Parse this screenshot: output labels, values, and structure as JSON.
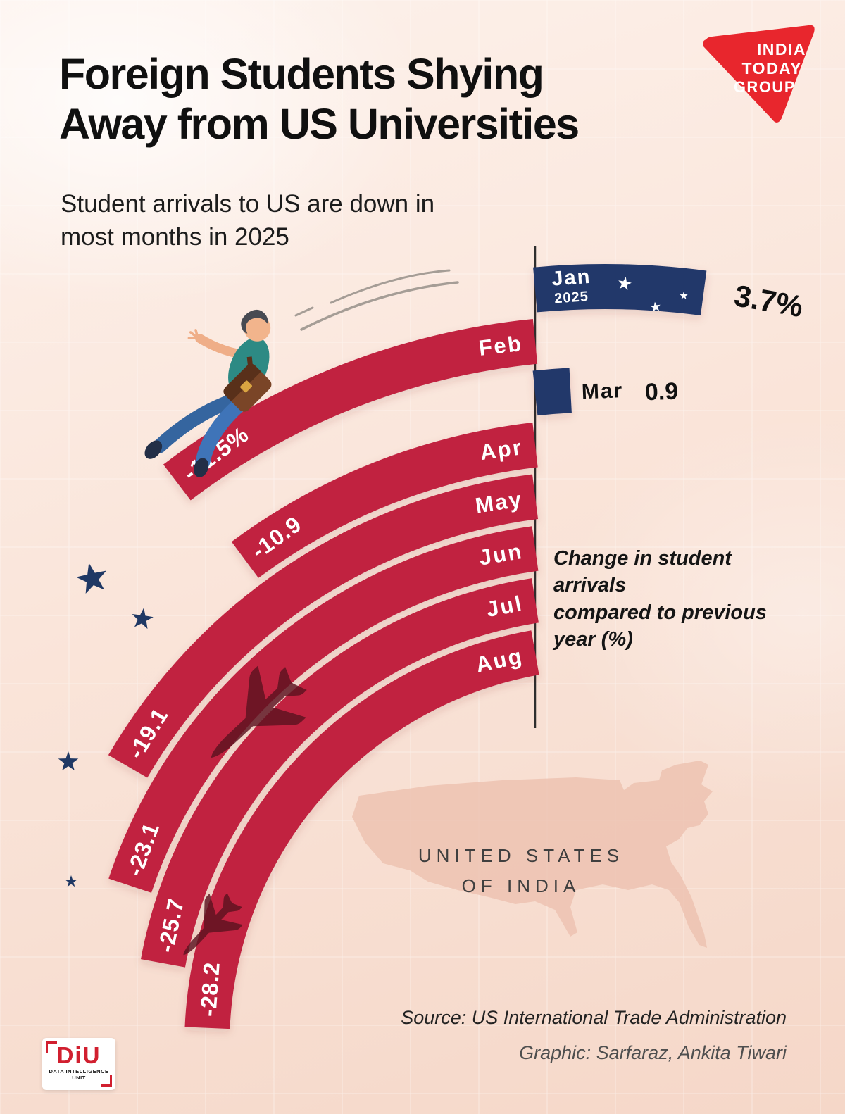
{
  "header": {
    "title": "Foreign Students Shying\nAway from US Universities",
    "subtitle": "Student arrivals to US are down in\nmost months in 2025"
  },
  "brand": {
    "line1": "INDIA",
    "line2": "TODAY",
    "line3": "GROUP"
  },
  "map": {
    "label": "UNITED STATES\nOF INDIA"
  },
  "footer": {
    "source": "Source: US International Trade Administration",
    "credit": "Graphic: Sarfaraz, Ankita Tiwari"
  },
  "diu": {
    "name": "DiU",
    "tagline": "DATA INTELLIGENCE UNIT"
  },
  "chart_data": {
    "type": "radial-bar",
    "title": "Change in student arrivals compared to previous year (%)",
    "note": "Change in student arrivals\ncompared to previous\nyear (%)",
    "unit": "%",
    "year": "2025",
    "categories": [
      "Jan 2025",
      "Feb",
      "Mar",
      "Apr",
      "May",
      "Jun",
      "Jul",
      "Aug"
    ],
    "values": [
      3.7,
      -11.5,
      0.9,
      -10.9,
      -19.1,
      -23.1,
      -25.7,
      -28.2
    ],
    "months": [
      {
        "label": "Jan",
        "sublabel": "2025",
        "value": 3.7,
        "display": "3.7%"
      },
      {
        "label": "Feb",
        "value": -11.5,
        "display": "-11.5%"
      },
      {
        "label": "Mar",
        "value": 0.9,
        "display": "0.9"
      },
      {
        "label": "Apr",
        "value": -10.9,
        "display": "-10.9"
      },
      {
        "label": "May",
        "value": -19.1,
        "display": "-19.1"
      },
      {
        "label": "Jun",
        "value": -23.1,
        "display": "-23.1"
      },
      {
        "label": "Jul",
        "value": -25.7,
        "display": "-25.7"
      },
      {
        "label": "Aug",
        "value": -28.2,
        "display": "-28.2"
      }
    ],
    "colors": {
      "negative": "#c1203f",
      "positive": "#20386b"
    },
    "layout": {
      "legend": "none",
      "start": "vertical axis at top right",
      "direction": "negatives sweep counterclockwise (left), positives extend right"
    }
  }
}
